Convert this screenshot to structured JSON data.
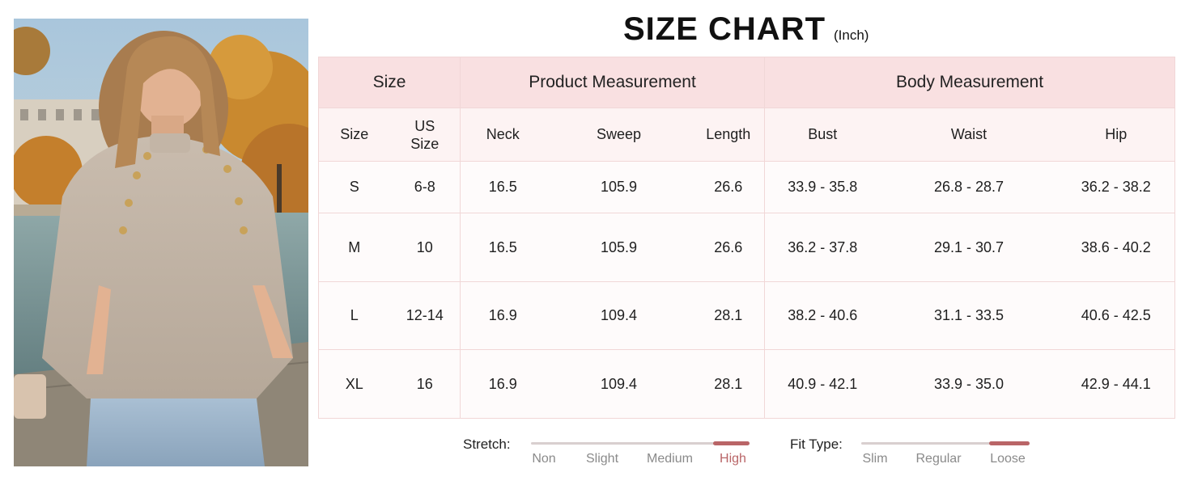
{
  "title": {
    "main": "SIZE CHART",
    "unit": "(Inch)"
  },
  "table": {
    "groups": {
      "size": "Size",
      "product": "Product Measurement",
      "body": "Body Measurement"
    },
    "subheaders": {
      "size": "Size",
      "us_size_line1": "US",
      "us_size_line2": "Size",
      "neck": "Neck",
      "sweep": "Sweep",
      "length": "Length",
      "bust": "Bust",
      "waist": "Waist",
      "hip": "Hip"
    },
    "rows": [
      {
        "size": "S",
        "us": "6-8",
        "neck": "16.5",
        "sweep": "105.9",
        "length": "26.6",
        "bust": "33.9 - 35.8",
        "waist": "26.8 - 28.7",
        "hip": "36.2 - 38.2"
      },
      {
        "size": "M",
        "us": "10",
        "neck": "16.5",
        "sweep": "105.9",
        "length": "26.6",
        "bust": "36.2 - 37.8",
        "waist": "29.1 - 30.7",
        "hip": "38.6 - 40.2"
      },
      {
        "size": "L",
        "us": "12-14",
        "neck": "16.9",
        "sweep": "109.4",
        "length": "28.1",
        "bust": "38.2 - 40.6",
        "waist": "31.1 - 33.5",
        "hip": "40.6 - 42.5"
      },
      {
        "size": "XL",
        "us": "16",
        "neck": "16.9",
        "sweep": "109.4",
        "length": "28.1",
        "bust": "40.9 - 42.1",
        "waist": "33.9 - 35.0",
        "hip": "42.9 - 44.1"
      }
    ]
  },
  "stretch": {
    "label": "Stretch:",
    "options": [
      "Non",
      "Slight",
      "Medium",
      "High"
    ],
    "selected": "High"
  },
  "fit": {
    "label": "Fit Type:",
    "options": [
      "Slim",
      "Regular",
      "Loose"
    ],
    "selected": "Loose"
  },
  "colors": {
    "header_pink": "#f9e0e1",
    "subheader_pink": "#fdf3f3",
    "border_pink": "#f1d7d7",
    "accent": "#b96567"
  },
  "photo": {
    "subject": "woman-in-beige-cape-sweater"
  }
}
